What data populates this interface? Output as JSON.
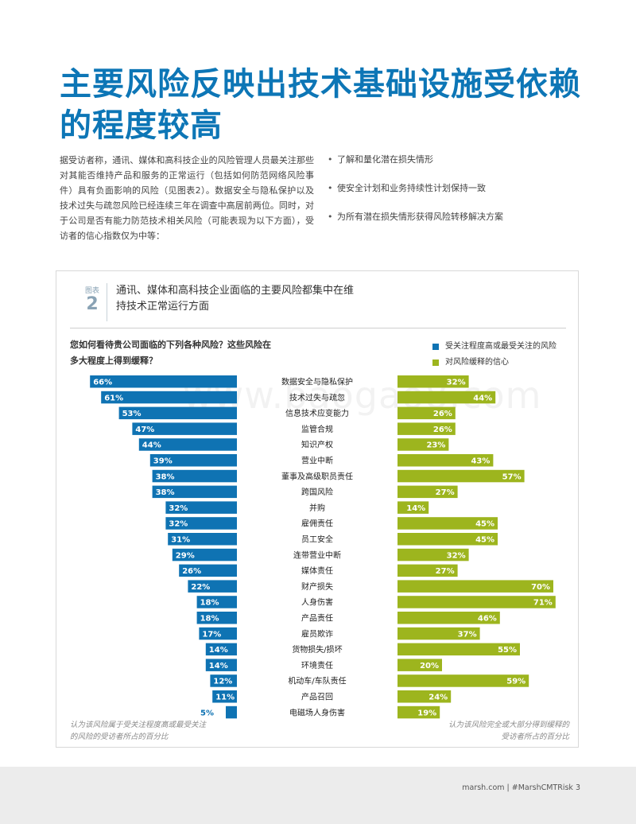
{
  "page": {
    "title": "主要风险反映出技术基础设施受依赖的程度较高",
    "intro": "据受访者称，通讯、媒体和高科技企业的风险管理人员最关注那些对其能否维持产品和服务的正常运行（包括如何防范网络风险事件）具有负面影响的风险（见图表2）。数据安全与隐私保护以及技术过失与疏忽风险已经连续三年在调查中高居前两位。同时，对于公司是否有能力防范技术相关风险（可能表现为以下方面），受访者的信心指数仅为中等：",
    "bullets": [
      "了解和量化潜在损失情形",
      "使安全计划和业务持续性计划保持一致",
      "为所有潜在损失情形获得风险转移解决方案"
    ],
    "watermark": "www.baogao8.com",
    "footer": "marsh.com | #MarshCMTRisk 3"
  },
  "figure": {
    "label_small": "图表",
    "label_number": "2",
    "title": "通讯、媒体和高科技企业面临的主要风险都集中在维持技术正常运行方面",
    "question": "您如何看待贵公司面临的下列各种风险？这些风险在多大程度上得到缓释？",
    "legend_left": "受关注程度高或最受关注的风险",
    "legend_right": "对风险缓释的信心",
    "footnote_left": "认为该风险属于受关注程度高或最受关注的风险的受访者所占的百分比",
    "footnote_right": "认为该风险完全或大部分得到缓释的受访者所占的百分比",
    "colors": {
      "concern": "#0f73b3",
      "confidence": "#9db51e"
    }
  },
  "chart_data": {
    "type": "bar",
    "orientation": "horizontal",
    "categories": [
      "数据安全与隐私保护",
      "技术过失与疏忽",
      "信息技术应变能力",
      "监管合规",
      "知识产权",
      "营业中断",
      "董事及高级职员责任",
      "跨国风险",
      "并购",
      "雇佣责任",
      "员工安全",
      "连带营业中断",
      "媒体责任",
      "财产损失",
      "人身伤害",
      "产品责任",
      "雇员欺诈",
      "货物损失/损坏",
      "环境责任",
      "机动车/车队责任",
      "产品召回",
      "电磁场人身伤害"
    ],
    "series": [
      {
        "name": "受关注程度高或最受关注的风险",
        "values": [
          66,
          61,
          53,
          47,
          44,
          39,
          38,
          38,
          32,
          32,
          31,
          29,
          26,
          22,
          18,
          18,
          17,
          14,
          14,
          12,
          11,
          5
        ],
        "labels": [
          "66%",
          "61%",
          "53%",
          "47%",
          "44%",
          "39%",
          "38%",
          "38%",
          "32%",
          "32%",
          "31%",
          "29%",
          "26%",
          "22%",
          "18%",
          "18%",
          "17%",
          "14%",
          "14%",
          "12%",
          "11%",
          "5%"
        ]
      },
      {
        "name": "对风险缓释的信心",
        "values": [
          32,
          44,
          26,
          26,
          23,
          43,
          57,
          27,
          14,
          45,
          45,
          32,
          27,
          70,
          71,
          46,
          37,
          55,
          20,
          59,
          24,
          19
        ],
        "labels": [
          "32%",
          "44%",
          "26%",
          "26%",
          "23%",
          "43%",
          "57%",
          "27%",
          "14%",
          "45%",
          "45%",
          "32%",
          "27%",
          "70%",
          "71%",
          "46%",
          "37%",
          "55%",
          "20%",
          "59%",
          "24%",
          "19%"
        ]
      }
    ],
    "xlim": [
      0,
      75
    ]
  }
}
